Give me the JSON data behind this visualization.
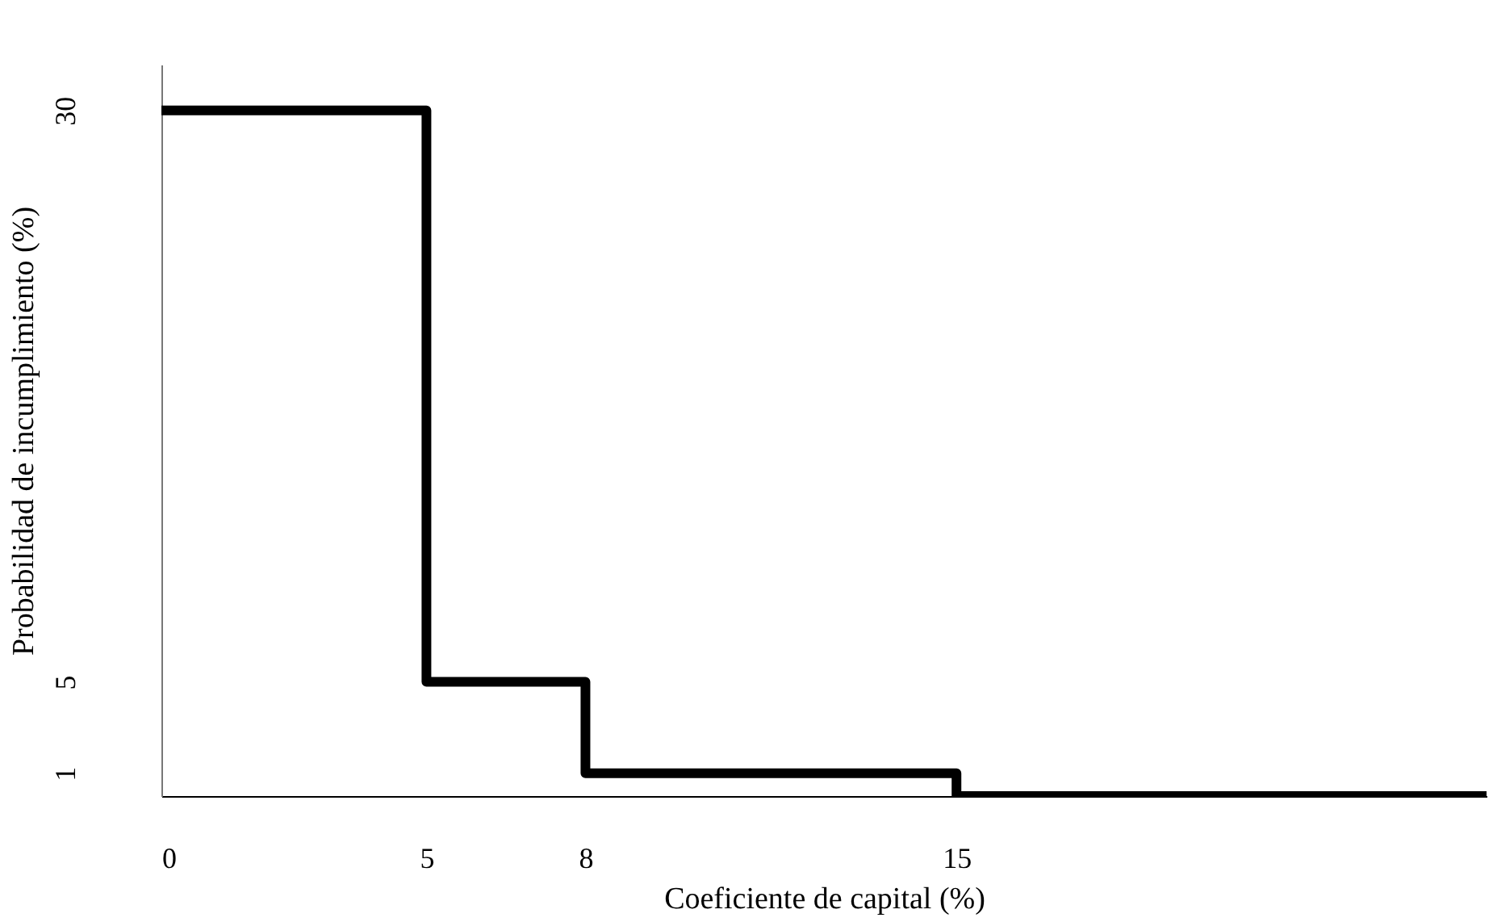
{
  "chart_data": {
    "type": "step",
    "xlabel": "Coeficiente de capital (%)",
    "ylabel": "Probabilidad de incumplimiento (%)",
    "x": [
      0,
      5,
      8,
      15,
      25
    ],
    "series": [
      {
        "color": "#000000",
        "values": [
          30,
          5,
          1,
          0,
          0
        ]
      }
    ],
    "xlim": [
      0,
      25
    ],
    "ylim": [
      0,
      32
    ],
    "xticks": [
      0,
      5,
      8,
      15
    ],
    "yticks": [
      1,
      5,
      30
    ],
    "grid": false
  }
}
